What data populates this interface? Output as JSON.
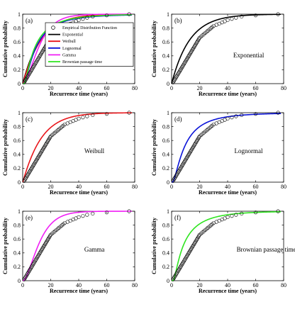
{
  "figure": {
    "empirical_label": "Empirical Distribution Function",
    "empirical_points": [
      [
        1.0,
        0.017
      ],
      [
        1.5,
        0.034
      ],
      [
        2.0,
        0.051
      ],
      [
        2.5,
        0.068
      ],
      [
        3.0,
        0.085
      ],
      [
        3.5,
        0.102
      ],
      [
        4.0,
        0.119
      ],
      [
        4.5,
        0.136
      ],
      [
        5.0,
        0.153
      ],
      [
        5.5,
        0.169
      ],
      [
        6.0,
        0.186
      ],
      [
        6.5,
        0.203
      ],
      [
        7.0,
        0.22
      ],
      [
        7.5,
        0.237
      ],
      [
        8.0,
        0.254
      ],
      [
        8.5,
        0.271
      ],
      [
        9.0,
        0.288
      ],
      [
        9.5,
        0.305
      ],
      [
        10.0,
        0.322
      ],
      [
        10.5,
        0.339
      ],
      [
        11.0,
        0.356
      ],
      [
        11.5,
        0.373
      ],
      [
        12.0,
        0.39
      ],
      [
        12.5,
        0.407
      ],
      [
        13.0,
        0.424
      ],
      [
        13.5,
        0.441
      ],
      [
        14.0,
        0.458
      ],
      [
        14.5,
        0.475
      ],
      [
        15.0,
        0.492
      ],
      [
        15.5,
        0.508
      ],
      [
        16.0,
        0.525
      ],
      [
        16.5,
        0.542
      ],
      [
        17.0,
        0.559
      ],
      [
        17.5,
        0.576
      ],
      [
        18.0,
        0.593
      ],
      [
        18.5,
        0.61
      ],
      [
        19.0,
        0.627
      ],
      [
        19.5,
        0.644
      ],
      [
        20.0,
        0.661
      ],
      [
        21.0,
        0.678
      ],
      [
        22.0,
        0.695
      ],
      [
        23.0,
        0.712
      ],
      [
        24.0,
        0.729
      ],
      [
        25.0,
        0.746
      ],
      [
        26.0,
        0.763
      ],
      [
        27.0,
        0.78
      ],
      [
        28.0,
        0.797
      ],
      [
        29.0,
        0.814
      ],
      [
        30.0,
        0.831
      ],
      [
        32.0,
        0.847
      ],
      [
        34.0,
        0.864
      ],
      [
        36.0,
        0.881
      ],
      [
        38.0,
        0.898
      ],
      [
        40.0,
        0.915
      ],
      [
        43.0,
        0.932
      ],
      [
        46.0,
        0.949
      ],
      [
        50.0,
        0.966
      ],
      [
        60.0,
        0.983
      ],
      [
        76.0,
        1.0
      ]
    ]
  },
  "chart_data": [
    {
      "type": "line",
      "panel_label": "(a)",
      "distribution_label": "",
      "xlabel": "Recurrence time (years)",
      "ylabel": "Cumulative probability",
      "xlim": [
        0,
        80
      ],
      "ylim": [
        0,
        1
      ],
      "xticks": [
        0,
        20,
        40,
        60,
        80
      ],
      "yticks": [
        0,
        0.2,
        0.4,
        0.6,
        0.8,
        1
      ],
      "xtick_labels": [
        "0",
        "20",
        "40",
        "60",
        "80"
      ],
      "ytick_labels": [
        "0",
        "0.2",
        "0.4",
        "0.6",
        "0.8",
        "1"
      ],
      "legend_position": "right",
      "series": [
        {
          "name": "Exponential",
          "model": "exponential",
          "params": {
            "mean": 13
          },
          "color": "#000000"
        },
        {
          "name": "Weibull",
          "model": "weibull",
          "params": {
            "shape": 1.05,
            "scale": 13.2
          },
          "color": "#e8161b"
        },
        {
          "name": "Lognormal",
          "model": "lognormal",
          "params": {
            "mu": 2.2,
            "sigma": 0.95
          },
          "color": "#0b14d8"
        },
        {
          "name": "Gamma",
          "model": "gamma2",
          "params": {
            "scale": 6.5
          },
          "color": "#f01ff5"
        },
        {
          "name": "Brownian passage time",
          "model": "bpt",
          "params": {
            "mean": 13,
            "alpha": 1.1
          },
          "color": "#2ee41f"
        }
      ]
    },
    {
      "type": "line",
      "panel_label": "(b)",
      "distribution_label": "Exponential",
      "xlabel": "Recurrence time (years)",
      "ylabel": "Cumulative probability",
      "xlim": [
        0,
        80
      ],
      "ylim": [
        0,
        1
      ],
      "xticks": [
        0,
        20,
        40,
        60,
        80
      ],
      "yticks": [
        0,
        0.2,
        0.4,
        0.6,
        0.8,
        1
      ],
      "xtick_labels": [
        "0",
        "20",
        "40",
        "60",
        "80"
      ],
      "ytick_labels": [
        "0",
        "0.2",
        "0.4",
        "0.6",
        "0.8",
        "1"
      ],
      "series": [
        {
          "name": "Exponential",
          "model": "exponential",
          "params": {
            "mean": 13
          },
          "color": "#000000"
        }
      ]
    },
    {
      "type": "line",
      "panel_label": "(c)",
      "distribution_label": "Weibull",
      "xlabel": "Recurrence time (years)",
      "ylabel": "Cumulative probability",
      "xlim": [
        0,
        80
      ],
      "ylim": [
        0,
        1
      ],
      "xticks": [
        0,
        20,
        40,
        60,
        80
      ],
      "yticks": [
        0,
        0.2,
        0.4,
        0.6,
        0.8,
        1
      ],
      "xtick_labels": [
        "0",
        "20",
        "40",
        "60",
        "80"
      ],
      "ytick_labels": [
        "0",
        "0.2",
        "0.4",
        "0.6",
        "0.8",
        "1"
      ],
      "series": [
        {
          "name": "Weibull",
          "model": "weibull",
          "params": {
            "shape": 1.05,
            "scale": 13.2
          },
          "color": "#e8161b"
        }
      ]
    },
    {
      "type": "line",
      "panel_label": "(d)",
      "distribution_label": "Lognormal",
      "xlabel": "Recurrence time (years)",
      "ylabel": "Cumulative probability",
      "xlim": [
        0,
        80
      ],
      "ylim": [
        0,
        1
      ],
      "xticks": [
        0,
        20,
        40,
        60,
        80
      ],
      "yticks": [
        0,
        0.2,
        0.4,
        0.6,
        0.8,
        1
      ],
      "xtick_labels": [
        "0",
        "20",
        "40",
        "60",
        "80"
      ],
      "ytick_labels": [
        "0",
        "0.2",
        "0.4",
        "0.6",
        "0.8",
        "1"
      ],
      "series": [
        {
          "name": "Lognormal",
          "model": "lognormal",
          "params": {
            "mu": 2.2,
            "sigma": 0.95
          },
          "color": "#0b14d8"
        }
      ]
    },
    {
      "type": "line",
      "panel_label": "(e)",
      "distribution_label": "Gamma",
      "xlabel": "Recurrence time (years)",
      "ylabel": "Cumulative probability",
      "xlim": [
        0,
        80
      ],
      "ylim": [
        0,
        1
      ],
      "xticks": [
        0,
        20,
        40,
        60,
        80
      ],
      "yticks": [
        0,
        0.2,
        0.4,
        0.6,
        0.8,
        1
      ],
      "xtick_labels": [
        "0",
        "20",
        "40",
        "60",
        "80"
      ],
      "ytick_labels": [
        "0",
        "0.2",
        "0.4",
        "0.6",
        "0.8",
        "1"
      ],
      "series": [
        {
          "name": "Gamma",
          "model": "gamma2",
          "params": {
            "scale": 6.5
          },
          "color": "#f01ff5"
        }
      ]
    },
    {
      "type": "line",
      "panel_label": "(f)",
      "distribution_label": "Brownian passage time",
      "xlabel": "Recurrence time (years)",
      "ylabel": "Cumulative probability",
      "xlim": [
        0,
        80
      ],
      "ylim": [
        0,
        1
      ],
      "xticks": [
        0,
        20,
        40,
        60,
        80
      ],
      "yticks": [
        0,
        0.2,
        0.4,
        0.6,
        0.8,
        1
      ],
      "xtick_labels": [
        "0",
        "20",
        "40",
        "60",
        "80"
      ],
      "ytick_labels": [
        "0",
        "0.2",
        "0.4",
        "0.6",
        "0.8",
        "1"
      ],
      "series": [
        {
          "name": "Brownian passage time",
          "model": "bpt",
          "params": {
            "mean": 13,
            "alpha": 1.1
          },
          "color": "#2ee41f"
        }
      ]
    }
  ]
}
